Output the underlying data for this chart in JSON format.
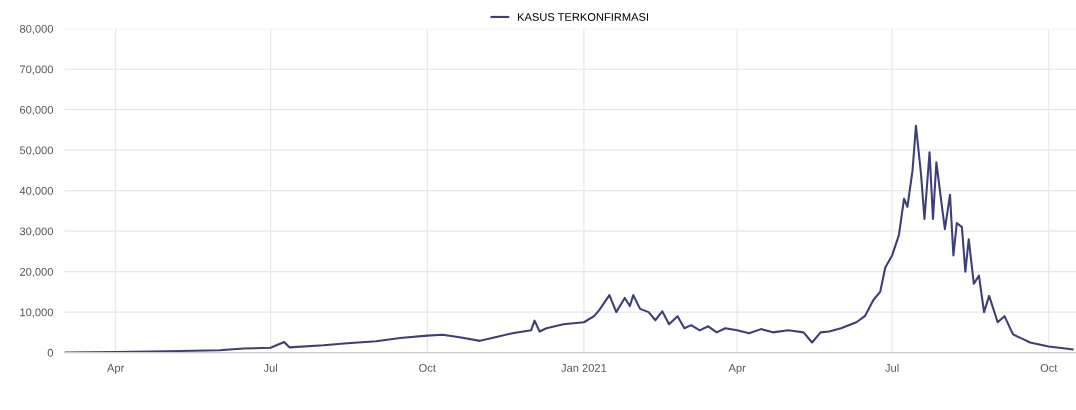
{
  "chart_data": {
    "type": "line",
    "x": [
      "2020-03-02",
      "2020-04-01",
      "2020-05-01",
      "2020-06-01",
      "2020-06-15",
      "2020-07-01",
      "2020-07-09",
      "2020-07-12",
      "2020-08-01",
      "2020-08-15",
      "2020-09-01",
      "2020-09-15",
      "2020-10-01",
      "2020-10-10",
      "2020-10-20",
      "2020-11-01",
      "2020-11-10",
      "2020-11-20",
      "2020-12-01",
      "2020-12-03",
      "2020-12-06",
      "2020-12-10",
      "2020-12-20",
      "2021-01-01",
      "2021-01-07",
      "2021-01-10",
      "2021-01-16",
      "2021-01-20",
      "2021-01-25",
      "2021-01-28",
      "2021-01-30",
      "2021-02-03",
      "2021-02-08",
      "2021-02-12",
      "2021-02-16",
      "2021-02-20",
      "2021-02-25",
      "2021-03-01",
      "2021-03-05",
      "2021-03-10",
      "2021-03-15",
      "2021-03-20",
      "2021-03-25",
      "2021-04-01",
      "2021-04-08",
      "2021-04-15",
      "2021-04-22",
      "2021-05-01",
      "2021-05-10",
      "2021-05-15",
      "2021-05-20",
      "2021-05-25",
      "2021-06-01",
      "2021-06-10",
      "2021-06-15",
      "2021-06-20",
      "2021-06-24",
      "2021-06-27",
      "2021-07-01",
      "2021-07-05",
      "2021-07-08",
      "2021-07-10",
      "2021-07-13",
      "2021-07-15",
      "2021-07-18",
      "2021-07-20",
      "2021-07-23",
      "2021-07-25",
      "2021-07-27",
      "2021-07-30",
      "2021-08-01",
      "2021-08-04",
      "2021-08-06",
      "2021-08-08",
      "2021-08-11",
      "2021-08-13",
      "2021-08-15",
      "2021-08-18",
      "2021-08-21",
      "2021-08-24",
      "2021-08-27",
      "2021-09-01",
      "2021-09-05",
      "2021-09-10",
      "2021-09-15",
      "2021-09-20",
      "2021-10-01",
      "2021-10-15"
    ],
    "series": [
      {
        "name": "KASUS TERKONFIRMASI",
        "color": "#3d3f7a",
        "values": [
          0,
          150,
          350,
          600,
          1000,
          1200,
          2600,
          1300,
          1800,
          2300,
          2800,
          3600,
          4200,
          4400,
          3800,
          2900,
          3800,
          4800,
          5500,
          7900,
          5200,
          6000,
          7000,
          7500,
          9000,
          10500,
          14200,
          10000,
          13500,
          11500,
          14200,
          10800,
          10000,
          8000,
          10200,
          7000,
          9000,
          6000,
          6800,
          5500,
          6500,
          5000,
          6000,
          5500,
          4800,
          5800,
          5000,
          5500,
          5000,
          2500,
          5000,
          5200,
          6000,
          7500,
          9000,
          13000,
          15000,
          21000,
          24000,
          29000,
          38000,
          36000,
          45000,
          56000,
          44000,
          33000,
          49500,
          33000,
          47000,
          37000,
          30500,
          39000,
          24000,
          32000,
          31000,
          20000,
          28000,
          17000,
          19000,
          10000,
          14000,
          7500,
          9000,
          4500,
          3500,
          2500,
          1500,
          800
        ]
      }
    ],
    "xlim": [
      "2020-03-02",
      "2021-10-17"
    ],
    "xticks": [
      {
        "value": "2020-04-01",
        "label": "Apr"
      },
      {
        "value": "2020-07-01",
        "label": "Jul"
      },
      {
        "value": "2020-10-01",
        "label": "Oct"
      },
      {
        "value": "2021-01-01",
        "label": "Jan 2021"
      },
      {
        "value": "2021-04-01",
        "label": "Apr"
      },
      {
        "value": "2021-07-01",
        "label": "Jul"
      },
      {
        "value": "2021-10-01",
        "label": "Oct"
      }
    ],
    "ylim": [
      0,
      80000
    ],
    "yticks": [
      {
        "value": 0,
        "label": "0"
      },
      {
        "value": 10000,
        "label": "10,000"
      },
      {
        "value": 20000,
        "label": "20,000"
      },
      {
        "value": 30000,
        "label": "30,000"
      },
      {
        "value": 40000,
        "label": "40,000"
      },
      {
        "value": 50000,
        "label": "50,000"
      },
      {
        "value": 60000,
        "label": "60,000"
      },
      {
        "value": 70000,
        "label": "70,000"
      },
      {
        "value": 80000,
        "label": "80,000"
      }
    ],
    "grid": true,
    "legend": "top",
    "marker": "none",
    "line_style": "solid"
  }
}
